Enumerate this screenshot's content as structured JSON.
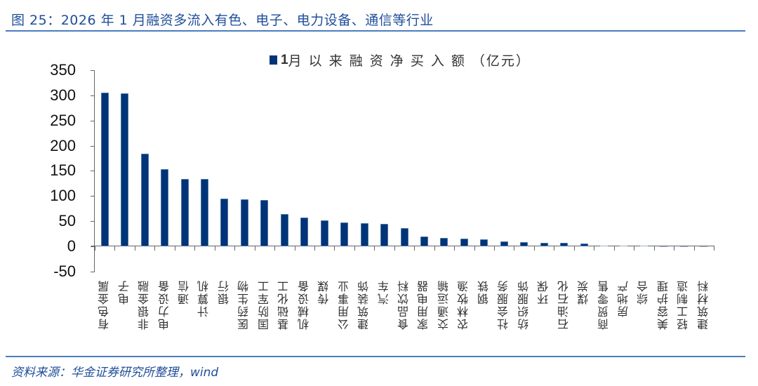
{
  "figure": {
    "title": "图 25：2026 年 1 月融资多流入有色、电子、电力设备、通信等行业",
    "source": "资料来源：华金证券研究所整理，wind"
  },
  "legend": {
    "num": "1",
    "text": "月 以 来 融 资 净 买 入 额 （亿元）"
  },
  "colors": {
    "bar": "#003478",
    "title": "#1f4e9a",
    "rule": "#4a7cc0"
  },
  "chart_data": {
    "type": "bar",
    "title": "1月以来融资净买入额（亿元）",
    "xlabel": "",
    "ylabel": "",
    "ylim": [
      -50,
      350
    ],
    "yticks": [
      350,
      300,
      250,
      200,
      150,
      100,
      50,
      0,
      -50
    ],
    "grid": false,
    "legend_position": "top",
    "categories": [
      "有色金属",
      "电子",
      "非银金融",
      "电力设备",
      "通信",
      "计算机",
      "银行",
      "医药生物",
      "国防军工",
      "基础化工",
      "机械设备",
      "传媒",
      "公用事业",
      "建筑装饰",
      "汽车",
      "食品饮料",
      "家用电器",
      "交通运输",
      "农林牧渔",
      "钢铁",
      "社会服务",
      "纺织服饰",
      "环保",
      "石油石化",
      "煤炭",
      "商贸零售",
      "房地产",
      "综合",
      "美容护理",
      "轻工制造",
      "建筑材料"
    ],
    "series": [
      {
        "name": "1月以来融资净买入额（亿元）",
        "values": [
          306,
          304,
          184,
          153,
          134,
          134,
          95,
          93,
          92,
          64,
          57,
          52,
          47,
          46,
          44,
          36,
          20,
          17,
          15,
          14,
          10,
          9,
          7,
          7,
          5,
          1.5,
          1.5,
          1.5,
          -1.5,
          -1.5,
          -1.5
        ]
      }
    ]
  }
}
